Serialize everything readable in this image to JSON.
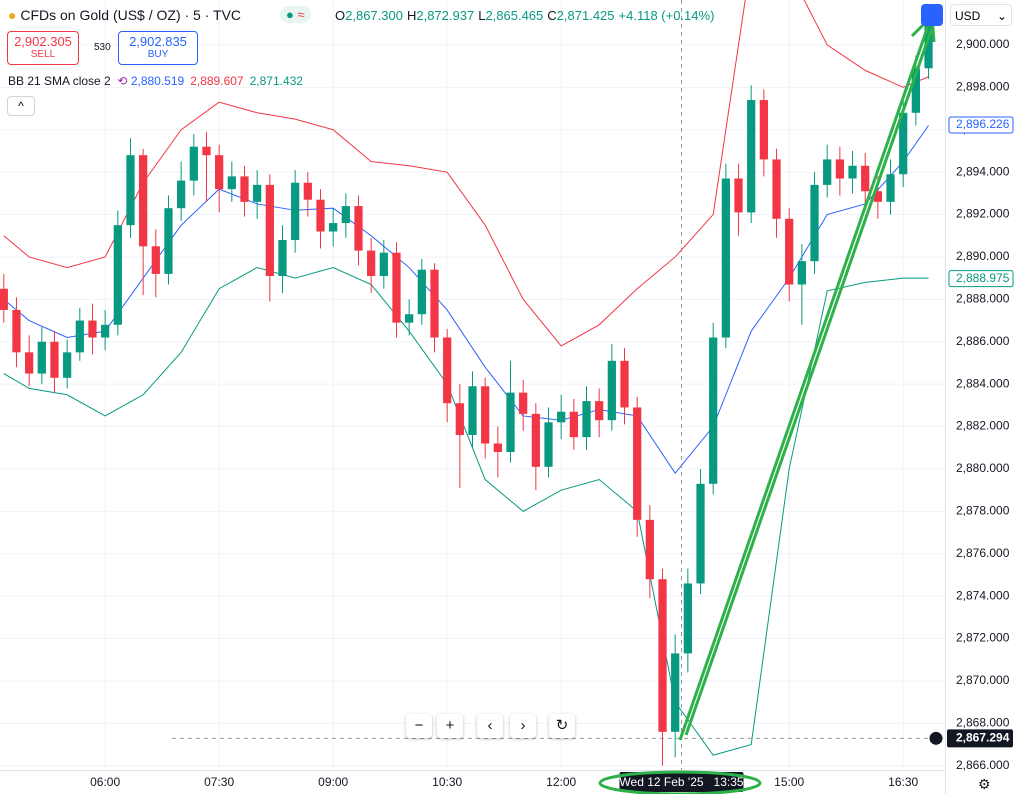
{
  "header": {
    "title": "CFDs on Gold (US$ / OZ) · 5 · TVC",
    "ohlc": [
      {
        "key": "O",
        "value": "2,867.300"
      },
      {
        "key": "H",
        "value": "2,872.937"
      },
      {
        "key": "L",
        "value": "2,865.465"
      },
      {
        "key": "C",
        "value": "2,871.425"
      }
    ],
    "change": "+4.118 (+0.14%)",
    "sell": {
      "price": "2,902.305",
      "label": "SELL"
    },
    "spread": "530",
    "buy": {
      "price": "2,902.835",
      "label": "BUY"
    },
    "indicator": {
      "name": "BB 21 SMA close 2",
      "values": [
        "2,880.519",
        "2,889.607",
        "2,871.432"
      ]
    },
    "currency": "USD"
  },
  "chart_data": {
    "type": "candlestick",
    "x": [
      "04:40",
      "04:50",
      "05:00",
      "05:10",
      "05:20",
      "05:30",
      "05:40",
      "05:50",
      "06:00",
      "06:10",
      "06:20",
      "06:30",
      "06:40",
      "06:50",
      "07:00",
      "07:10",
      "07:20",
      "07:30",
      "07:40",
      "07:50",
      "08:00",
      "08:10",
      "08:20",
      "08:30",
      "08:40",
      "08:50",
      "09:00",
      "09:10",
      "09:20",
      "09:30",
      "09:40",
      "09:50",
      "10:00",
      "10:10",
      "10:20",
      "10:30",
      "10:40",
      "10:50",
      "11:00",
      "11:10",
      "11:20",
      "11:30",
      "11:40",
      "11:50",
      "12:00",
      "12:10",
      "12:20",
      "12:30",
      "12:40",
      "12:50",
      "13:00",
      "13:10",
      "13:20",
      "13:30",
      "13:40",
      "13:50",
      "14:00",
      "14:10",
      "14:20",
      "14:30",
      "14:40",
      "14:50",
      "15:00",
      "15:10",
      "15:20",
      "15:30",
      "15:40",
      "15:50",
      "16:00",
      "16:10",
      "16:20",
      "16:30",
      "16:40",
      "16:50"
    ],
    "open": [
      2888.5,
      2887.5,
      2885.5,
      2884.5,
      2886,
      2884.3,
      2885.5,
      2887,
      2886.2,
      2886.8,
      2891.5,
      2894.8,
      2890.5,
      2889.2,
      2892.3,
      2893.6,
      2895.2,
      2894.8,
      2893.2,
      2893.8,
      2892.6,
      2893.4,
      2889.1,
      2890.8,
      2893.5,
      2892.7,
      2891.2,
      2891.6,
      2892.4,
      2890.3,
      2889.1,
      2890.2,
      2886.9,
      2887.3,
      2889.4,
      2886.2,
      2883.1,
      2881.6,
      2883.9,
      2881.2,
      2880.8,
      2883.6,
      2882.6,
      2880.1,
      2882.2,
      2882.7,
      2881.5,
      2883.2,
      2882.3,
      2885.1,
      2882.9,
      2877.6,
      2874.8,
      2867.6,
      2871.3,
      2874.6,
      2879.3,
      2886.2,
      2893.7,
      2892.1,
      2897.4,
      2894.6,
      2891.8,
      2888.7,
      2889.8,
      2893.4,
      2894.6,
      2893.7,
      2894.3,
      2893.1,
      2892.6,
      2893.9,
      2896.8,
      2898.9
    ],
    "high": [
      2889.2,
      2888.1,
      2886.3,
      2886.7,
      2886.5,
      2886.1,
      2887.6,
      2887.8,
      2887.5,
      2892.2,
      2895.6,
      2895.1,
      2891.3,
      2892.9,
      2894.5,
      2895.8,
      2895.9,
      2895.3,
      2894.5,
      2894.3,
      2894.1,
      2893.9,
      2891.5,
      2894.1,
      2894.0,
      2893.2,
      2892.3,
      2893.0,
      2892.9,
      2890.9,
      2890.8,
      2890.7,
      2888.0,
      2889.9,
      2889.7,
      2886.6,
      2884.0,
      2884.6,
      2884.3,
      2882.0,
      2885.1,
      2884.2,
      2883.1,
      2882.9,
      2883.5,
      2883.3,
      2883.9,
      2883.8,
      2885.9,
      2885.7,
      2883.4,
      2878.3,
      2875.3,
      2872.2,
      2875.3,
      2880.0,
      2886.9,
      2894.4,
      2894.4,
      2898.1,
      2897.9,
      2895.1,
      2892.3,
      2890.6,
      2894.0,
      2895.3,
      2895.2,
      2895.0,
      2894.9,
      2893.8,
      2894.6,
      2897.4,
      2899.5,
      2901.8
    ],
    "low": [
      2886.9,
      2884.8,
      2883.9,
      2884.0,
      2883.6,
      2883.8,
      2885.1,
      2885.4,
      2885.6,
      2886.3,
      2890.9,
      2888.2,
      2888.1,
      2888.7,
      2891.7,
      2892.9,
      2892.6,
      2892.1,
      2892.6,
      2891.9,
      2891.8,
      2887.9,
      2888.3,
      2890.2,
      2891.9,
      2890.4,
      2890.5,
      2890.9,
      2889.6,
      2888.3,
      2888.5,
      2886.2,
      2886.3,
      2886.8,
      2885.5,
      2882.2,
      2879.1,
      2881.0,
      2880.5,
      2879.6,
      2880.3,
      2881.8,
      2879.0,
      2879.6,
      2881.4,
      2880.9,
      2880.9,
      2881.5,
      2881.8,
      2882.1,
      2876.8,
      2873.9,
      2866.0,
      2866.4,
      2870.4,
      2874.1,
      2878.8,
      2885.7,
      2891.0,
      2891.6,
      2893.8,
      2890.9,
      2887.9,
      2886.8,
      2889.2,
      2892.8,
      2892.9,
      2893.0,
      2892.2,
      2891.8,
      2892.0,
      2893.3,
      2896.2,
      2898.4
    ],
    "close": [
      2887.5,
      2885.5,
      2884.5,
      2886,
      2884.3,
      2885.5,
      2887,
      2886.2,
      2886.8,
      2891.5,
      2894.8,
      2890.5,
      2889.2,
      2892.3,
      2893.6,
      2895.2,
      2894.8,
      2893.2,
      2893.8,
      2892.6,
      2893.4,
      2889.1,
      2890.8,
      2893.5,
      2892.7,
      2891.2,
      2891.6,
      2892.4,
      2890.3,
      2889.1,
      2890.2,
      2886.9,
      2887.3,
      2889.4,
      2886.2,
      2883.1,
      2881.6,
      2883.9,
      2881.2,
      2880.8,
      2883.6,
      2882.6,
      2880.1,
      2882.2,
      2882.7,
      2881.5,
      2883.2,
      2882.3,
      2885.1,
      2882.9,
      2877.6,
      2874.8,
      2867.6,
      2871.3,
      2874.6,
      2879.3,
      2886.2,
      2893.7,
      2892.1,
      2897.4,
      2894.6,
      2891.8,
      2888.7,
      2889.8,
      2893.4,
      2894.6,
      2893.7,
      2894.3,
      2893.1,
      2892.6,
      2893.9,
      2896.8,
      2898.9,
      2901.2
    ],
    "up_color": "#089981",
    "down_color": "#f23645",
    "overlay_x": [
      "04:40",
      "05:00",
      "05:30",
      "06:00",
      "06:30",
      "07:00",
      "07:30",
      "08:00",
      "08:30",
      "09:00",
      "09:30",
      "10:00",
      "10:30",
      "11:00",
      "11:30",
      "12:00",
      "12:30",
      "13:00",
      "13:30",
      "14:00",
      "14:30",
      "15:00",
      "15:30",
      "16:00",
      "16:30",
      "16:50"
    ],
    "overlays": [
      {
        "color": "#f23645",
        "values": [
          2891,
          2890,
          2889.5,
          2890,
          2893.5,
          2896,
          2897.3,
          2896.8,
          2896.5,
          2896,
          2894.5,
          2894.3,
          2894,
          2891.5,
          2888,
          2885.8,
          2886.8,
          2888.5,
          2890,
          2892,
          2904,
          2903.5,
          2900,
          2898.8,
          2898,
          2898.5
        ]
      },
      {
        "color": "#2962ff",
        "values": [
          2888,
          2887,
          2886.2,
          2886.5,
          2889,
          2891.5,
          2893.2,
          2892.5,
          2892.2,
          2892.3,
          2891,
          2889.5,
          2887.5,
          2884.8,
          2882.5,
          2882.3,
          2882.8,
          2882.5,
          2879.8,
          2882,
          2886.5,
          2889,
          2892,
          2892.5,
          2894.5,
          2896.2
        ]
      },
      {
        "color": "#089981",
        "values": [
          2884.5,
          2883.8,
          2883.5,
          2882.5,
          2883.5,
          2885.5,
          2888.5,
          2889.5,
          2889,
          2889.5,
          2888.7,
          2886.5,
          2884,
          2879.5,
          2878,
          2879,
          2879.5,
          2878,
          2869,
          2866.5,
          2867,
          2880,
          2888.4,
          2888.8,
          2889,
          2889
        ]
      }
    ],
    "xlim": [
      "04:37",
      "17:03"
    ],
    "xticks": [
      "06:00",
      "07:30",
      "09:00",
      "10:30",
      "12:00",
      "15:00",
      "16:30"
    ],
    "ylim": [
      2865.8,
      2902.12
    ],
    "yticks": [
      {
        "value": 2866,
        "label": "2,866.000"
      },
      {
        "value": 2868,
        "label": "2,868.000"
      },
      {
        "value": 2870,
        "label": "2,870.000"
      },
      {
        "value": 2872,
        "label": "2,872.000"
      },
      {
        "value": 2874,
        "label": "2,874.000"
      },
      {
        "value": 2876,
        "label": "2,876.000"
      },
      {
        "value": 2878,
        "label": "2,878.000"
      },
      {
        "value": 2880,
        "label": "2,880.000"
      },
      {
        "value": 2882,
        "label": "2,882.000"
      },
      {
        "value": 2884,
        "label": "2,884.000"
      },
      {
        "value": 2886,
        "label": "2,886.000"
      },
      {
        "value": 2888,
        "label": "2,888.000"
      },
      {
        "value": 2890,
        "label": "2,890.000"
      },
      {
        "value": 2892,
        "label": "2,892.000"
      },
      {
        "value": 2894,
        "label": "2,894.000"
      },
      {
        "value": 2896,
        "label": "2,896.000"
      },
      {
        "value": 2898,
        "label": "2,898.000"
      },
      {
        "value": 2900,
        "label": "2,900.000"
      }
    ],
    "grid": true,
    "price_tags": [
      {
        "value": 2896.226,
        "label": "2,896.226",
        "color": "#2962ff"
      },
      {
        "value": 2888.975,
        "label": "2,888.975",
        "color": "#089981"
      }
    ],
    "crosshair": {
      "x": "13:35",
      "x_label": "Wed 12 Feb '25   13:35",
      "y": {
        "value": 2867.294,
        "label": "2,867.294"
      }
    }
  }
}
